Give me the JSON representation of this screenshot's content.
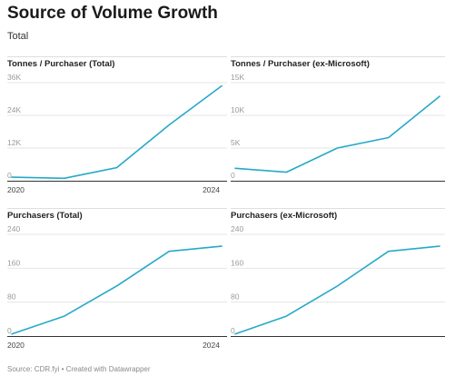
{
  "title": "Source of Volume Growth",
  "subtitle": "Total",
  "footer": "Source: CDR.fyi • Created with Datawrapper",
  "line_color": "#26a9c9",
  "chart_data": [
    {
      "type": "line",
      "title": "Tonnes / Purchaser (Total)",
      "ylim": [
        0,
        36000
      ],
      "y_ticks": [
        0,
        12000,
        24000,
        36000
      ],
      "y_tick_labels": [
        "0",
        "12K",
        "24K",
        "36K"
      ],
      "x": [
        2020,
        2021,
        2022,
        2023,
        2024
      ],
      "x_tick_labels": [
        "2020",
        "2024"
      ],
      "series": [
        {
          "values": [
            1300,
            900,
            4800,
            20500,
            34800
          ]
        }
      ]
    },
    {
      "type": "line",
      "title": "Tonnes / Purchaser (ex-Microsoft)",
      "ylim": [
        0,
        15000
      ],
      "y_ticks": [
        0,
        5000,
        10000,
        15000
      ],
      "y_tick_labels": [
        "0",
        "5K",
        "10K",
        "15K"
      ],
      "x": [
        2020,
        2021,
        2022,
        2023,
        2024
      ],
      "x_tick_labels": [],
      "series": [
        {
          "values": [
            1900,
            1300,
            5000,
            6600,
            12900
          ]
        }
      ]
    },
    {
      "type": "line",
      "title": "Purchasers (Total)",
      "ylim": [
        0,
        240
      ],
      "y_ticks": [
        0,
        80,
        160,
        240
      ],
      "y_tick_labels": [
        "0",
        "80",
        "160",
        "240"
      ],
      "x": [
        2020,
        2021,
        2022,
        2023,
        2024
      ],
      "x_tick_labels": [
        "2020",
        "2024"
      ],
      "series": [
        {
          "values": [
            5,
            47,
            118,
            200,
            212
          ]
        }
      ]
    },
    {
      "type": "line",
      "title": "Purchasers (ex-Microsoft)",
      "ylim": [
        0,
        240
      ],
      "y_ticks": [
        0,
        80,
        160,
        240
      ],
      "y_tick_labels": [
        "0",
        "80",
        "160",
        "240"
      ],
      "x": [
        2020,
        2021,
        2022,
        2023,
        2024
      ],
      "x_tick_labels": [],
      "series": [
        {
          "values": [
            5,
            47,
            118,
            200,
            212
          ]
        }
      ]
    }
  ]
}
